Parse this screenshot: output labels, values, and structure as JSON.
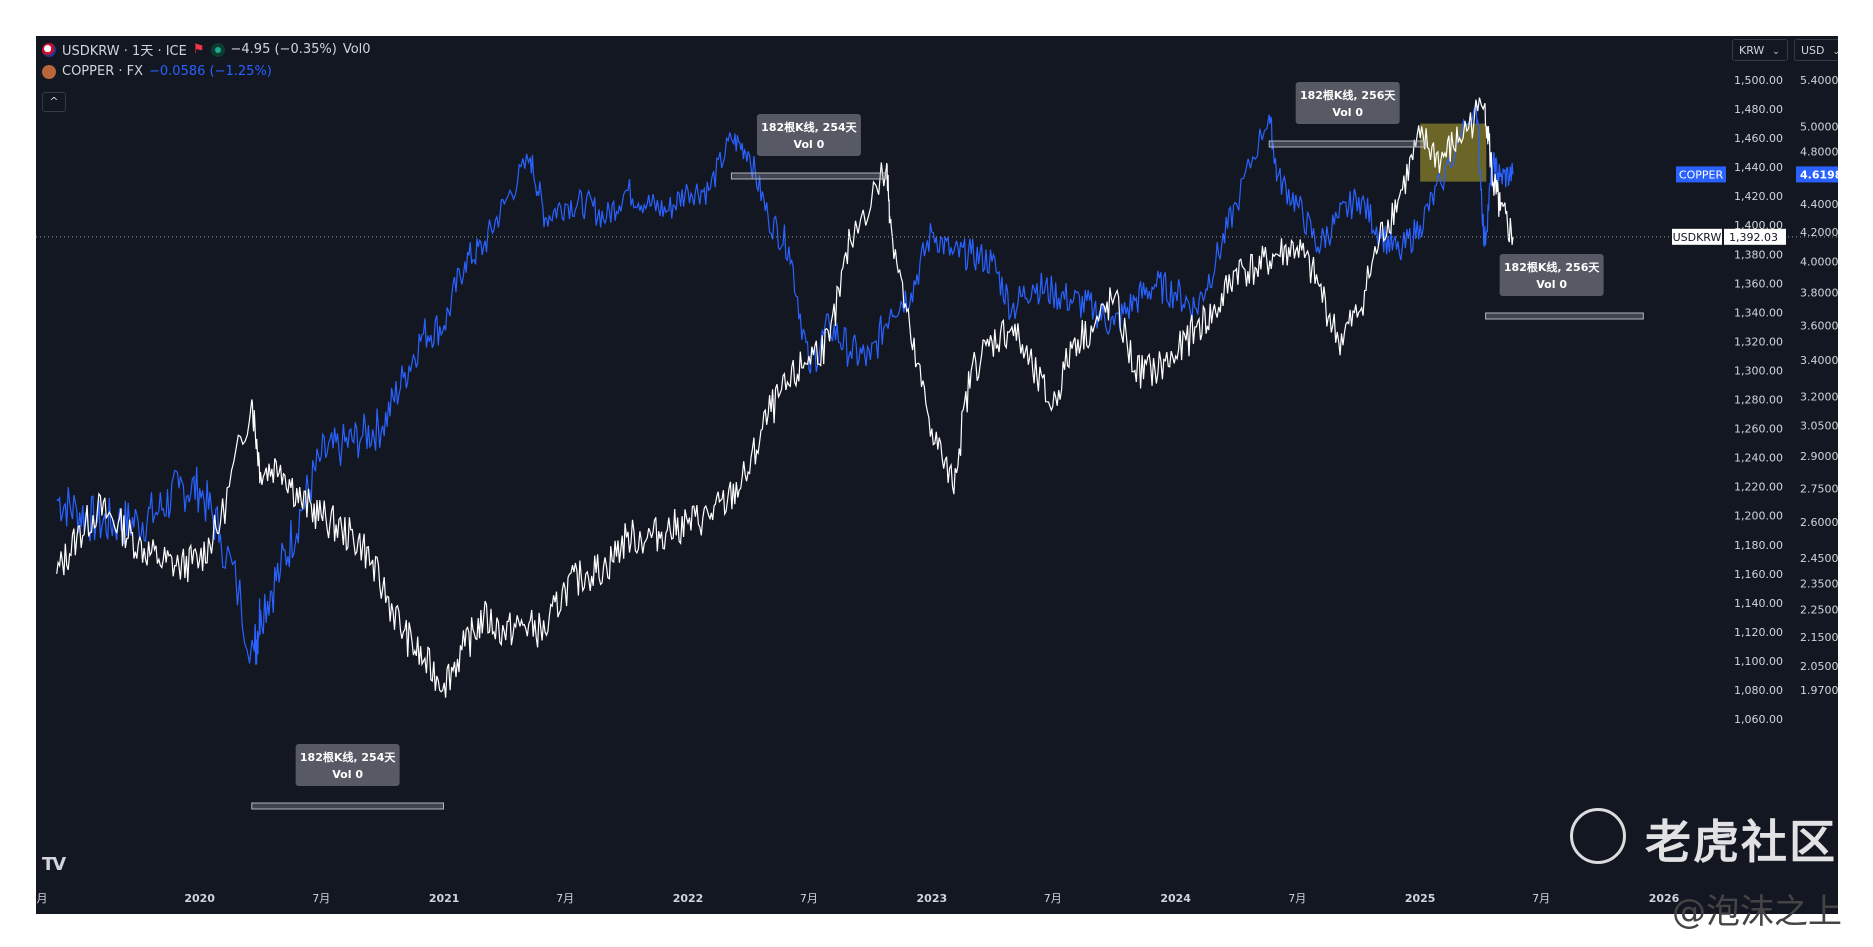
{
  "legend": {
    "line1": {
      "symbol": "USDKRW",
      "label": "USDKRW · 1天 · ICE",
      "change": "−4.95 (−0.35%)",
      "vol": "Vol0"
    },
    "line2": {
      "label": "COPPER · FX",
      "change": "−0.0586 (−1.25%)"
    },
    "collapse": "^"
  },
  "selectors": {
    "krw": "KRW",
    "usd": "USD"
  },
  "axis_labels": {
    "krw": [
      "1,500.00",
      "1,480.00",
      "1,460.00",
      "1,440.00",
      "1,420.00",
      "1,400.00",
      "1,380.00",
      "1,360.00",
      "1,340.00",
      "1,320.00",
      "1,300.00",
      "1,280.00",
      "1,260.00",
      "1,240.00",
      "1,220.00",
      "1,200.00",
      "1,180.00",
      "1,160.00",
      "1,140.00",
      "1,120.00",
      "1,100.00",
      "1,080.00",
      "1,060.00"
    ],
    "usd": [
      "5.4000",
      "5.0000",
      "4.8000",
      "4.4000",
      "4.2000",
      "4.0000",
      "3.8000",
      "3.6000",
      "3.4000",
      "3.2000",
      "3.0500",
      "2.9000",
      "2.7500",
      "2.6000",
      "2.4500",
      "2.3500",
      "2.2500",
      "2.1500",
      "2.0500",
      "1.9700"
    ],
    "time": [
      "月",
      "2020",
      "7月",
      "2021",
      "7月",
      "2022",
      "7月",
      "2023",
      "7月",
      "2024",
      "7月",
      "2025",
      "7月",
      "2026"
    ]
  },
  "price_tags": {
    "copper_name": "COPPER",
    "copper_value": "4.6198",
    "usdkrw_name": "USDKRW",
    "usdkrw_value": "1,392.03"
  },
  "annotations": [
    {
      "title": "182根K线, 254天",
      "sub": "Vol 0"
    },
    {
      "title": "182根K线, 254天",
      "sub": "Vol 0"
    },
    {
      "title": "182根K线, 256天",
      "sub": "Vol 0"
    },
    {
      "title": "182根K线, 256天",
      "sub": "Vol 0"
    }
  ],
  "watermarks": {
    "brand": "老虎社区",
    "handle": "@泡沫之上"
  },
  "colors": {
    "background": "#131722",
    "usdkrw": "#ffffff",
    "copper": "#2962ff",
    "text": "#d1d4dc",
    "annotation_bg": "#5d606b",
    "highlight": "#b5a62b"
  },
  "chart_data": {
    "type": "line",
    "title": "USDKRW · 1天 · ICE",
    "x_range": [
      "2019-05",
      "2026-01"
    ],
    "series": [
      {
        "name": "USDKRW",
        "axis": "KRW",
        "points": [
          [
            "2019-06-01",
            1160
          ],
          [
            "2019-07-01",
            1185
          ],
          [
            "2019-08-01",
            1205
          ],
          [
            "2019-09-01",
            1195
          ],
          [
            "2019-10-01",
            1180
          ],
          [
            "2019-11-01",
            1170
          ],
          [
            "2019-12-01",
            1165
          ],
          [
            "2020-01-01",
            1170
          ],
          [
            "2020-02-01",
            1195
          ],
          [
            "2020-03-19",
            1280
          ],
          [
            "2020-04-01",
            1230
          ],
          [
            "2020-05-01",
            1235
          ],
          [
            "2020-06-01",
            1210
          ],
          [
            "2020-07-01",
            1200
          ],
          [
            "2020-08-01",
            1190
          ],
          [
            "2020-09-01",
            1180
          ],
          [
            "2020-10-01",
            1150
          ],
          [
            "2020-11-01",
            1120
          ],
          [
            "2020-12-01",
            1100
          ],
          [
            "2021-01-01",
            1085
          ],
          [
            "2021-02-01",
            1110
          ],
          [
            "2021-03-01",
            1130
          ],
          [
            "2021-04-01",
            1120
          ],
          [
            "2021-05-01",
            1125
          ],
          [
            "2021-06-01",
            1120
          ],
          [
            "2021-07-01",
            1150
          ],
          [
            "2021-08-01",
            1160
          ],
          [
            "2021-09-01",
            1165
          ],
          [
            "2021-10-01",
            1185
          ],
          [
            "2021-11-01",
            1185
          ],
          [
            "2021-12-01",
            1190
          ],
          [
            "2022-01-01",
            1195
          ],
          [
            "2022-02-01",
            1200
          ],
          [
            "2022-03-01",
            1210
          ],
          [
            "2022-04-01",
            1230
          ],
          [
            "2022-05-01",
            1270
          ],
          [
            "2022-06-01",
            1290
          ],
          [
            "2022-07-01",
            1310
          ],
          [
            "2022-08-01",
            1320
          ],
          [
            "2022-09-01",
            1390
          ],
          [
            "2022-10-25",
            1440
          ],
          [
            "2022-11-01",
            1400
          ],
          [
            "2022-12-01",
            1320
          ],
          [
            "2023-01-01",
            1260
          ],
          [
            "2023-02-01",
            1220
          ],
          [
            "2023-03-01",
            1300
          ],
          [
            "2023-04-01",
            1320
          ],
          [
            "2023-05-01",
            1330
          ],
          [
            "2023-06-01",
            1300
          ],
          [
            "2023-07-01",
            1275
          ],
          [
            "2023-08-01",
            1320
          ],
          [
            "2023-09-01",
            1330
          ],
          [
            "2023-10-01",
            1350
          ],
          [
            "2023-11-01",
            1300
          ],
          [
            "2023-12-01",
            1300
          ],
          [
            "2024-01-01",
            1310
          ],
          [
            "2024-02-01",
            1330
          ],
          [
            "2024-03-01",
            1340
          ],
          [
            "2024-04-01",
            1370
          ],
          [
            "2024-05-01",
            1370
          ],
          [
            "2024-06-01",
            1380
          ],
          [
            "2024-07-01",
            1385
          ],
          [
            "2024-08-01",
            1360
          ],
          [
            "2024-09-01",
            1320
          ],
          [
            "2024-10-01",
            1340
          ],
          [
            "2024-11-01",
            1390
          ],
          [
            "2024-12-01",
            1420
          ],
          [
            "2025-01-01",
            1460
          ],
          [
            "2025-02-01",
            1445
          ],
          [
            "2025-03-01",
            1460
          ],
          [
            "2025-04-08",
            1484
          ],
          [
            "2025-04-20",
            1430
          ],
          [
            "2025-05-01",
            1410
          ],
          [
            "2025-05-20",
            1392
          ]
        ]
      },
      {
        "name": "COPPER",
        "axis": "USD",
        "points": [
          [
            "2019-06-01",
            2.7
          ],
          [
            "2019-07-01",
            2.65
          ],
          [
            "2019-08-01",
            2.6
          ],
          [
            "2019-09-01",
            2.6
          ],
          [
            "2019-10-01",
            2.6
          ],
          [
            "2019-11-01",
            2.65
          ],
          [
            "2019-12-01",
            2.75
          ],
          [
            "2020-01-01",
            2.75
          ],
          [
            "2020-02-01",
            2.55
          ],
          [
            "2020-03-23",
            2.1
          ],
          [
            "2020-04-01",
            2.25
          ],
          [
            "2020-05-01",
            2.4
          ],
          [
            "2020-06-01",
            2.65
          ],
          [
            "2020-07-01",
            2.9
          ],
          [
            "2020-08-01",
            2.95
          ],
          [
            "2020-09-01",
            3.0
          ],
          [
            "2020-10-01",
            3.05
          ],
          [
            "2020-11-01",
            3.3
          ],
          [
            "2020-12-01",
            3.55
          ],
          [
            "2021-01-01",
            3.6
          ],
          [
            "2021-02-01",
            4.0
          ],
          [
            "2021-03-01",
            4.1
          ],
          [
            "2021-04-01",
            4.4
          ],
          [
            "2021-05-10",
            4.75
          ],
          [
            "2021-06-01",
            4.3
          ],
          [
            "2021-07-01",
            4.4
          ],
          [
            "2021-08-01",
            4.4
          ],
          [
            "2021-09-01",
            4.3
          ],
          [
            "2021-10-01",
            4.5
          ],
          [
            "2021-11-01",
            4.4
          ],
          [
            "2021-12-01",
            4.35
          ],
          [
            "2022-01-01",
            4.5
          ],
          [
            "2022-02-01",
            4.5
          ],
          [
            "2022-03-07",
            4.9
          ],
          [
            "2022-04-01",
            4.8
          ],
          [
            "2022-05-01",
            4.3
          ],
          [
            "2022-06-01",
            4.1
          ],
          [
            "2022-07-01",
            3.35
          ],
          [
            "2022-08-01",
            3.6
          ],
          [
            "2022-09-01",
            3.45
          ],
          [
            "2022-10-01",
            3.4
          ],
          [
            "2022-11-01",
            3.7
          ],
          [
            "2022-12-01",
            3.8
          ],
          [
            "2023-01-01",
            4.2
          ],
          [
            "2023-02-01",
            4.05
          ],
          [
            "2023-03-01",
            4.05
          ],
          [
            "2023-04-01",
            4.0
          ],
          [
            "2023-05-01",
            3.7
          ],
          [
            "2023-06-01",
            3.85
          ],
          [
            "2023-07-01",
            3.8
          ],
          [
            "2023-08-01",
            3.75
          ],
          [
            "2023-09-01",
            3.7
          ],
          [
            "2023-10-01",
            3.6
          ],
          [
            "2023-11-01",
            3.75
          ],
          [
            "2023-12-01",
            3.85
          ],
          [
            "2024-01-01",
            3.8
          ],
          [
            "2024-02-01",
            3.7
          ],
          [
            "2024-03-01",
            4.0
          ],
          [
            "2024-04-01",
            4.4
          ],
          [
            "2024-05-20",
            5.1
          ],
          [
            "2024-06-01",
            4.6
          ],
          [
            "2024-07-01",
            4.4
          ],
          [
            "2024-08-01",
            4.1
          ],
          [
            "2024-09-01",
            4.3
          ],
          [
            "2024-10-01",
            4.45
          ],
          [
            "2024-11-01",
            4.2
          ],
          [
            "2024-12-01",
            4.05
          ],
          [
            "2025-01-01",
            4.25
          ],
          [
            "2025-02-01",
            4.55
          ],
          [
            "2025-03-26",
            5.2
          ],
          [
            "2025-04-07",
            4.1
          ],
          [
            "2025-04-20",
            4.7
          ],
          [
            "2025-05-01",
            4.6
          ],
          [
            "2025-05-20",
            4.62
          ]
        ]
      }
    ],
    "krw_axis": {
      "min": 1060,
      "max": 1510
    },
    "usd_axis": {
      "ticks": [
        5.4,
        5.0,
        4.8,
        4.4,
        4.2,
        4.0,
        3.8,
        3.6,
        3.4,
        3.2,
        3.05,
        2.9,
        2.75,
        2.6,
        2.45,
        2.35,
        2.25,
        2.15,
        2.05,
        1.97
      ]
    },
    "current": {
      "USDKRW": 1392.03,
      "COPPER": 4.6198
    },
    "ranges": [
      {
        "from": "2020-03-19",
        "to": "2020-12-31",
        "bars": 182,
        "days": 254
      },
      {
        "from": "2022-03-07",
        "to": "2022-10-25",
        "bars": 182,
        "days": 254
      },
      {
        "from": "2024-05-20",
        "to": "2025-01-10",
        "bars": 182,
        "days": 256
      },
      {
        "from": "2025-04-09",
        "to": "2025-12-01",
        "bars": 182,
        "days": 256
      }
    ],
    "highlight_box": {
      "from": "2025-01-01",
      "to": "2025-04-10",
      "krw_low": 1430,
      "krw_high": 1470
    }
  }
}
